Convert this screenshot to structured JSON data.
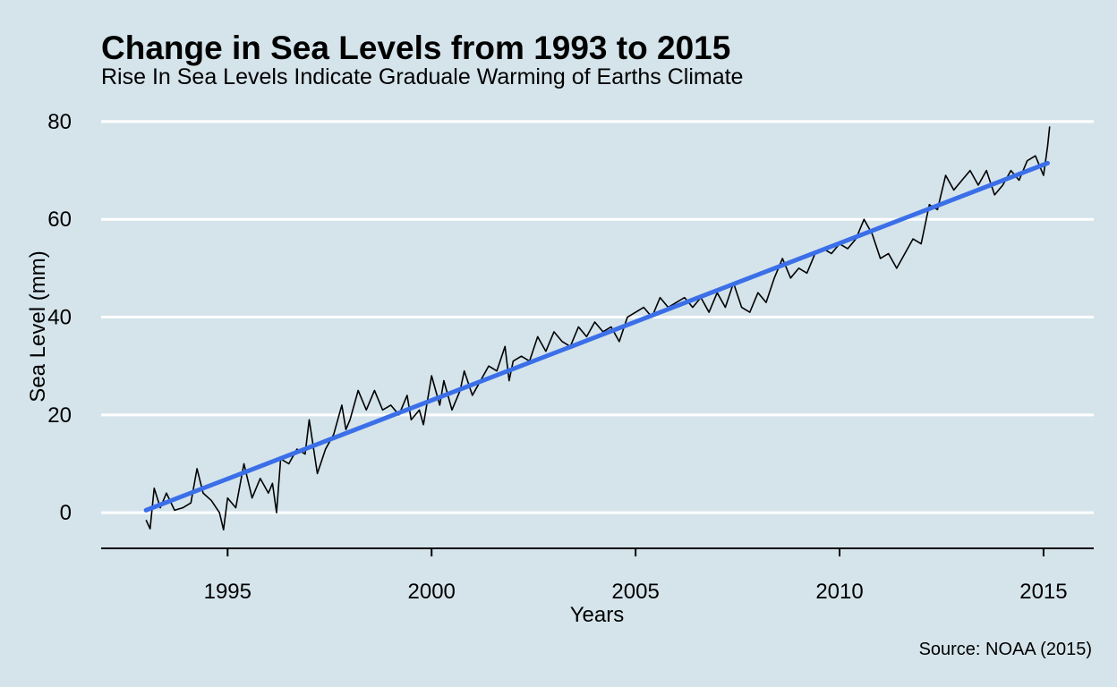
{
  "chart_data": {
    "type": "line",
    "title": "Change in Sea Levels from 1993 to 2015",
    "subtitle": "Rise In Sea Levels Indicate Graduale Warming of Earths Climate",
    "x_label": "Years",
    "y_label": "Sea Level (mm)",
    "caption": "Source: NOAA (2015)",
    "x": [
      1993.0,
      1993.1,
      1993.2,
      1993.35,
      1993.5,
      1993.7,
      1993.9,
      1994.1,
      1994.25,
      1994.4,
      1994.6,
      1994.8,
      1994.9,
      1995.0,
      1995.2,
      1995.4,
      1995.6,
      1995.8,
      1996.0,
      1996.1,
      1996.2,
      1996.3,
      1996.5,
      1996.7,
      1996.9,
      1997.0,
      1997.2,
      1997.4,
      1997.6,
      1997.8,
      1997.9,
      1998.0,
      1998.2,
      1998.4,
      1998.6,
      1998.8,
      1999.0,
      1999.2,
      1999.4,
      1999.5,
      1999.7,
      1999.8,
      2000.0,
      2000.2,
      2000.3,
      2000.5,
      2000.7,
      2000.8,
      2001.0,
      2001.2,
      2001.4,
      2001.6,
      2001.8,
      2001.9,
      2002.0,
      2002.2,
      2002.4,
      2002.6,
      2002.8,
      2003.0,
      2003.2,
      2003.4,
      2003.6,
      2003.8,
      2004.0,
      2004.2,
      2004.4,
      2004.6,
      2004.8,
      2005.0,
      2005.2,
      2005.4,
      2005.6,
      2005.8,
      2006.0,
      2006.2,
      2006.4,
      2006.6,
      2006.8,
      2007.0,
      2007.2,
      2007.4,
      2007.6,
      2007.8,
      2008.0,
      2008.2,
      2008.4,
      2008.6,
      2008.8,
      2009.0,
      2009.2,
      2009.4,
      2009.6,
      2009.8,
      2010.0,
      2010.2,
      2010.4,
      2010.6,
      2010.8,
      2011.0,
      2011.2,
      2011.4,
      2011.6,
      2011.8,
      2012.0,
      2012.2,
      2012.4,
      2012.6,
      2012.8,
      2013.0,
      2013.2,
      2013.4,
      2013.6,
      2013.8,
      2014.0,
      2014.2,
      2014.4,
      2014.6,
      2014.8,
      2015.0,
      2015.1,
      2015.15
    ],
    "series": [
      {
        "color": "#000000",
        "values": [
          -1.5,
          -3.3,
          5,
          1,
          4,
          0.5,
          1,
          2,
          9,
          4,
          2.5,
          0,
          -3.5,
          3,
          1,
          10,
          3,
          7,
          4,
          6,
          0,
          11,
          10,
          13,
          12,
          19,
          8,
          13,
          16,
          22,
          17,
          19,
          25,
          21,
          25,
          21,
          22,
          20,
          24,
          19,
          21,
          18,
          28,
          22,
          27,
          21,
          25,
          29,
          24,
          27,
          30,
          29,
          34,
          27,
          31,
          32,
          31,
          36,
          33,
          37,
          35,
          34,
          38,
          36,
          39,
          37,
          38,
          35,
          40,
          41,
          42,
          40,
          44,
          42,
          43,
          44,
          42,
          44,
          41,
          45,
          42,
          47,
          42,
          41,
          45,
          43,
          48,
          52,
          48,
          50,
          49,
          53,
          54,
          53,
          55,
          54,
          56,
          60,
          57,
          52,
          53,
          50,
          53,
          56,
          55,
          63,
          62,
          69,
          66,
          68,
          70,
          67,
          70,
          65,
          67,
          70,
          68,
          72,
          73,
          69,
          75,
          79
        ]
      }
    ],
    "trend": {
      "x": [
        1993.0,
        2015.1
      ],
      "values": [
        0.5,
        71.5
      ],
      "color": "#3b6fe8"
    },
    "xlim": [
      1991.9,
      2016.23
    ],
    "xticks": [
      1995,
      2000,
      2005,
      2010,
      2015
    ],
    "ylim": [
      -7.3,
      82
    ],
    "yticks": [
      0,
      20,
      40,
      60,
      80
    ],
    "grid": true
  }
}
